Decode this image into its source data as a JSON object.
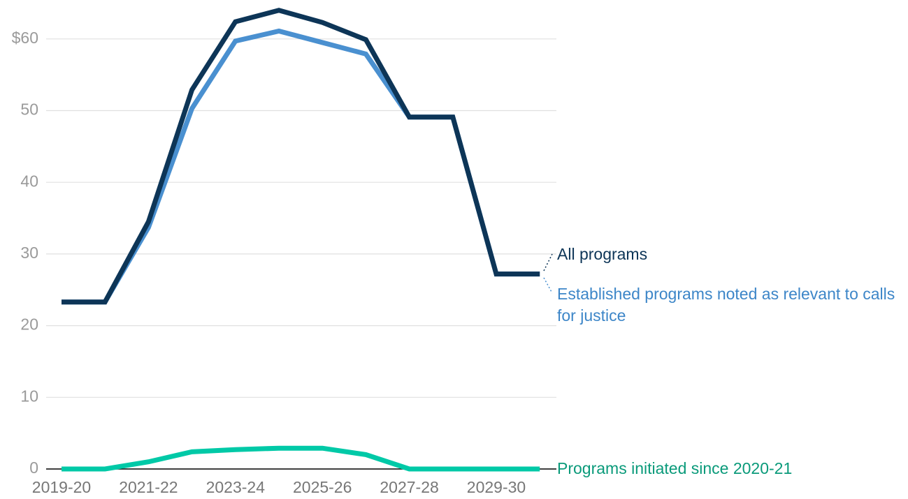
{
  "chart_data": {
    "type": "line",
    "categories": [
      "2019-20",
      null,
      "2021-22",
      null,
      "2023-24",
      null,
      "2025-26",
      null,
      "2027-28",
      null,
      "2029-30",
      null
    ],
    "series": [
      {
        "name": "Established programs noted as relevant to calls for justice",
        "color": "#4a90d0",
        "label_color": "#3d86c8",
        "values": [
          23.3,
          23.3,
          33.7,
          50.3,
          59.7,
          61.1,
          59.5,
          57.9,
          49.1,
          49.1,
          27.2,
          27.2
        ]
      },
      {
        "name": "All programs",
        "color": "#0d3557",
        "label_color": "#0d3557",
        "values": [
          23.3,
          23.3,
          34.5,
          52.9,
          62.4,
          64.0,
          62.3,
          59.9,
          49.1,
          49.1,
          27.2,
          27.2
        ]
      },
      {
        "name": "Programs initiated since 2020-21",
        "color": "#00c9a7",
        "label_color": "#0a9a7a",
        "values": [
          0,
          0,
          1.0,
          2.4,
          2.7,
          2.9,
          2.9,
          2.0,
          0,
          0,
          0,
          0
        ]
      }
    ],
    "ylim": [
      0,
      64.5
    ],
    "yticks": [
      0,
      10,
      20,
      30,
      40,
      50,
      {
        "value": 60,
        "label": "$60"
      }
    ],
    "grid": true
  }
}
